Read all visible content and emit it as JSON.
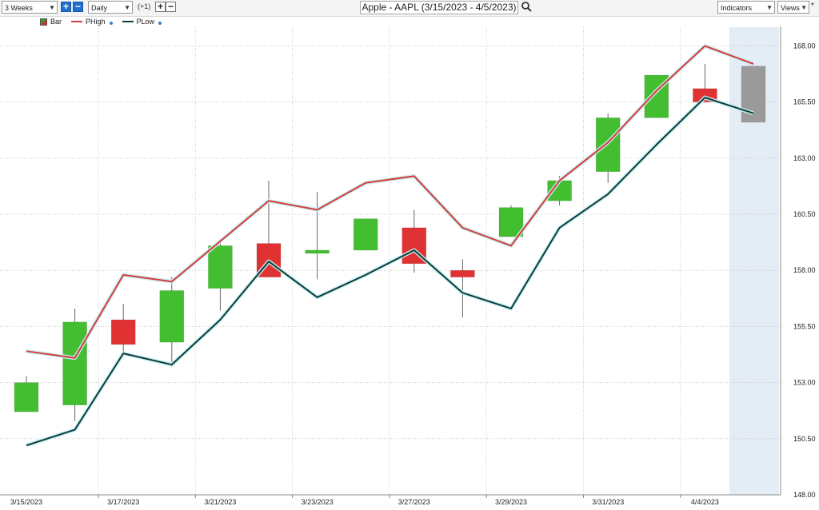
{
  "toolbar": {
    "period": "3 Weeks",
    "interval": "Daily",
    "offset": "(+1)",
    "title": "Apple - AAPL (3/15/2023 - 4/5/2023)",
    "indicators": "Indicators",
    "views": "Views",
    "plus": "+",
    "minus": "−",
    "dropdown_arrow": "▼",
    "asterisk": "*"
  },
  "legend": {
    "bar": "Bar",
    "phigh": "PHigh",
    "plow": "PLow"
  },
  "colors": {
    "up": "#43be31",
    "down": "#e03232",
    "forecast": "#9a9a9a",
    "phigh": "#d63b3b",
    "plow": "#0b3c3c",
    "highlight": "#e4ecf5"
  },
  "chart_data": {
    "type": "candlestick",
    "ylim": [
      148,
      169.3
    ],
    "yticks": [
      148.0,
      150.5,
      153.0,
      155.5,
      158.0,
      160.5,
      163.0,
      165.5,
      168.0
    ],
    "ytick_labels": [
      "148.00",
      "150.50",
      "153.00",
      "155.50",
      "158.00",
      "160.50",
      "163.00",
      "165.50",
      "168.00"
    ],
    "xtick_labels": [
      "3/15/2023",
      "3/17/2023",
      "3/21/2023",
      "3/23/2023",
      "3/27/2023",
      "3/29/2023",
      "3/31/2023",
      "4/4/2023"
    ],
    "candles": [
      {
        "open": 151.7,
        "high": 153.3,
        "low": null,
        "close": 153.0,
        "dir": "up"
      },
      {
        "open": 152.0,
        "high": 156.3,
        "low": 151.3,
        "close": 155.7,
        "dir": "up"
      },
      {
        "open": 155.8,
        "high": 156.5,
        "low": 154.3,
        "close": 154.7,
        "dir": "down"
      },
      {
        "open": 154.8,
        "high": 157.7,
        "low": 153.7,
        "close": 157.1,
        "dir": "up"
      },
      {
        "open": 157.2,
        "high": 159.4,
        "low": 156.2,
        "close": 159.1,
        "dir": "up"
      },
      {
        "open": 159.2,
        "high": 162.0,
        "low": null,
        "close": 157.7,
        "dir": "down"
      },
      {
        "open": 158.8,
        "high": 161.5,
        "low": 157.6,
        "close": 158.9,
        "dir": "up"
      },
      {
        "open": 158.9,
        "high": 160.3,
        "low": null,
        "close": 160.3,
        "dir": "up"
      },
      {
        "open": 159.9,
        "high": 160.7,
        "low": 157.9,
        "close": 158.3,
        "dir": "down"
      },
      {
        "open": 158.0,
        "high": 158.5,
        "low": 155.9,
        "close": 157.7,
        "dir": "down"
      },
      {
        "open": 159.5,
        "high": 160.9,
        "low": null,
        "close": 160.8,
        "dir": "up"
      },
      {
        "open": 161.1,
        "high": 162.2,
        "low": 160.9,
        "close": 162.0,
        "dir": "up"
      },
      {
        "open": 162.4,
        "high": 165.0,
        "low": 161.9,
        "close": 164.8,
        "dir": "up"
      },
      {
        "open": 164.8,
        "high": 166.7,
        "low": null,
        "close": 166.7,
        "dir": "up"
      },
      {
        "open": 166.1,
        "high": 167.2,
        "low": null,
        "close": 165.5,
        "dir": "down"
      },
      {
        "open": 167.1,
        "high": 167.1,
        "low": 164.6,
        "close": 164.6,
        "dir": "forecast"
      }
    ],
    "series": [
      {
        "name": "PHigh",
        "values": [
          154.4,
          154.1,
          157.8,
          157.5,
          159.3,
          161.1,
          160.7,
          161.9,
          162.2,
          159.9,
          159.1,
          162.0,
          163.7,
          166.0,
          168.0,
          167.2
        ]
      },
      {
        "name": "PLow",
        "values": [
          150.2,
          150.9,
          154.3,
          153.8,
          155.8,
          158.4,
          156.8,
          157.8,
          158.9,
          157.0,
          156.3,
          159.9,
          161.4,
          163.6,
          165.7,
          165.0
        ]
      }
    ]
  }
}
